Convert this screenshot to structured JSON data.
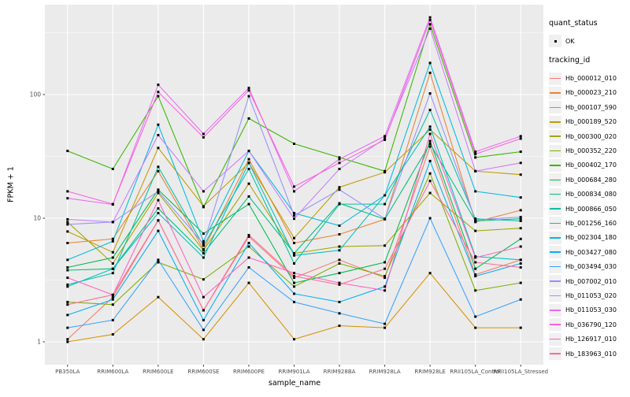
{
  "axes": {
    "y_tick_labels": [
      "1",
      "10",
      "100"
    ],
    "tick_color": "#333333",
    "tick_label_color": "#4D4D4D"
  },
  "legend": {
    "quant_status": {
      "title": "quant_status",
      "items": [
        {
          "label": "OK",
          "symbol": "black-square-point"
        }
      ]
    },
    "tracking_id": {
      "title": "tracking_id"
    }
  },
  "colors": {
    "panel_background": "#EBEBEB",
    "gridline": "#FFFFFF",
    "point": "#000000"
  },
  "chart_data": {
    "type": "line",
    "title": "",
    "xlabel": "sample_name",
    "ylabel": "FPKM + 1",
    "yscale": "log10",
    "ylim": [
      0.65,
      515
    ],
    "y_ticks": [
      "1",
      "10",
      "100"
    ],
    "grid": true,
    "legend_position": "right",
    "point_shape": "filled-black-square",
    "categories": [
      "PB350LA",
      "RRIM600LA",
      "RRIM600LE",
      "RRIM600SE",
      "RRIM600PE",
      "RRIM901LA",
      "RRIM928BA",
      "RRIM928LA",
      "RRIM928LE",
      "RRII105LA_Control",
      "RRII105LA_Stressed"
    ],
    "series": [
      {
        "name": "Hb_000012_010",
        "color": "#F8766D",
        "values": [
          1.05,
          2.3,
          9.6,
          1.8,
          7.1,
          3.3,
          4.6,
          3.3,
          38,
          3.5,
          4.6
        ]
      },
      {
        "name": "Hb_000023_210",
        "color": "#EA8331",
        "values": [
          6.3,
          6.8,
          24,
          5.6,
          30,
          6.3,
          7.4,
          9.8,
          150,
          9.3,
          11.6
        ]
      },
      {
        "name": "Hb_000107_590",
        "color": "#D89000",
        "values": [
          1.0,
          1.15,
          2.3,
          1.05,
          3.0,
          1.05,
          1.35,
          1.3,
          3.6,
          1.3,
          1.3
        ]
      },
      {
        "name": "Hb_000189_520",
        "color": "#C09B00",
        "values": [
          7.8,
          5.3,
          37,
          12.5,
          28,
          6.9,
          17.8,
          23.5,
          52,
          24,
          22.5
        ]
      },
      {
        "name": "Hb_000300_020",
        "color": "#A3A500",
        "values": [
          9.3,
          4.3,
          16,
          5.5,
          19,
          5.2,
          5.9,
          6.0,
          16,
          7.9,
          8.3
        ]
      },
      {
        "name": "Hb_000352_220",
        "color": "#7CAE00",
        "values": [
          2.1,
          2.0,
          4.4,
          3.2,
          5.9,
          2.8,
          4.3,
          3.4,
          23,
          2.6,
          3.0
        ]
      },
      {
        "name": "Hb_000402_170",
        "color": "#39B600",
        "values": [
          35,
          25,
          97,
          12.3,
          64,
          40,
          31,
          24,
          370,
          31,
          34.5
        ]
      },
      {
        "name": "Hb_000684_280",
        "color": "#00BB4E",
        "values": [
          4.0,
          4.8,
          17,
          7.5,
          13,
          3.0,
          3.6,
          4.4,
          42,
          3.9,
          6.8
        ]
      },
      {
        "name": "Hb_000834_080",
        "color": "#00BF7D",
        "values": [
          3.8,
          3.9,
          12,
          5.2,
          15,
          5.2,
          13.2,
          9.8,
          40,
          9.5,
          9.9
        ]
      },
      {
        "name": "Hb_000866_050",
        "color": "#00C1A3",
        "values": [
          2.9,
          3.6,
          26,
          6.0,
          25,
          4.3,
          13.0,
          13.0,
          75,
          9.9,
          9.5
        ]
      },
      {
        "name": "Hb_001256_160",
        "color": "#00BFC4",
        "values": [
          2.8,
          3.9,
          11,
          4.8,
          28,
          5.0,
          5.5,
          15.3,
          55,
          4.9,
          4.6
        ]
      },
      {
        "name": "Hb_002304_180",
        "color": "#00BAE0",
        "values": [
          4.6,
          6.5,
          57,
          6.5,
          35,
          11,
          8.7,
          15.3,
          180,
          16.5,
          14.7
        ]
      },
      {
        "name": "Hb_003427_080",
        "color": "#00B0F6",
        "values": [
          1.65,
          2.2,
          7.9,
          1.5,
          6.3,
          2.45,
          2.1,
          2.8,
          29,
          3.4,
          4.3
        ]
      },
      {
        "name": "Hb_003494_030",
        "color": "#35A2FF",
        "values": [
          1.3,
          1.5,
          4.6,
          1.25,
          4.0,
          2.1,
          1.7,
          1.4,
          10,
          1.6,
          2.2
        ]
      },
      {
        "name": "Hb_007002_010",
        "color": "#9590FF",
        "values": [
          8.9,
          9.3,
          16.5,
          6.2,
          97,
          10.5,
          17,
          9.9,
          102,
          9.7,
          10.2
        ]
      },
      {
        "name": "Hb_011053_020",
        "color": "#C77CFF",
        "values": [
          9.8,
          9.3,
          47,
          16.5,
          35,
          9.9,
          25,
          44,
          341,
          24,
          28
        ]
      },
      {
        "name": "Hb_011053_030",
        "color": "#E76BF3",
        "values": [
          14.5,
          12.9,
          120,
          48,
          113,
          16.5,
          30,
          46,
          420,
          34.5,
          46
        ]
      },
      {
        "name": "Hb_036790_120",
        "color": "#FA62DB",
        "values": [
          16.5,
          13,
          105,
          45,
          108,
          18,
          28,
          43,
          400,
          33,
          44
        ]
      },
      {
        "name": "Hb_126917_010",
        "color": "#FF62BC",
        "values": [
          3.3,
          2.4,
          14,
          2.3,
          4.8,
          3.6,
          3.0,
          2.6,
          48,
          4.8,
          5.9
        ]
      },
      {
        "name": "Hb_183963_010",
        "color": "#FF6A98",
        "values": [
          2.0,
          2.4,
          9.6,
          1.8,
          7.3,
          3.4,
          2.9,
          3.9,
          20,
          4.4,
          4.0
        ]
      }
    ]
  }
}
